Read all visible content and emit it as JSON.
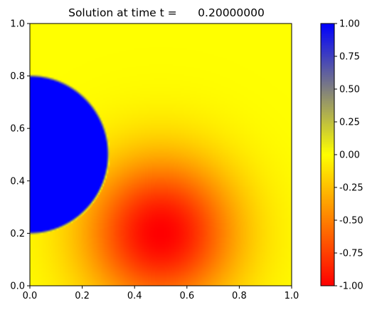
{
  "chart_data": [
    {
      "type": "heatmap",
      "title": "Solution at time t =      0.20000000",
      "xlim": [
        0.0,
        1.0
      ],
      "ylim": [
        0.0,
        1.0
      ],
      "xticks": [
        "0.0",
        "0.2",
        "0.4",
        "0.6",
        "0.8",
        "1.0"
      ],
      "yticks": [
        "0.0",
        "0.2",
        "0.4",
        "0.6",
        "0.8",
        "1.0"
      ],
      "grid": false,
      "field": {
        "positive_disk": {
          "center": [
            0.0,
            0.5
          ],
          "radius": 0.3,
          "value": 1.0
        },
        "negative_peak": {
          "center": [
            0.5,
            0.2
          ],
          "value": -1.0,
          "spread": 0.2
        },
        "background": 0.0
      }
    },
    {
      "type": "colorbar",
      "range": [
        -1.0,
        1.0
      ],
      "ticks": [
        "1.00",
        "0.75",
        "0.50",
        "0.25",
        "0.00",
        "-0.25",
        "-0.50",
        "-0.75",
        "-1.00"
      ],
      "colormap": {
        "low": "#ff0000",
        "mid": "#ffff00",
        "high": "#0000ff"
      }
    }
  ]
}
